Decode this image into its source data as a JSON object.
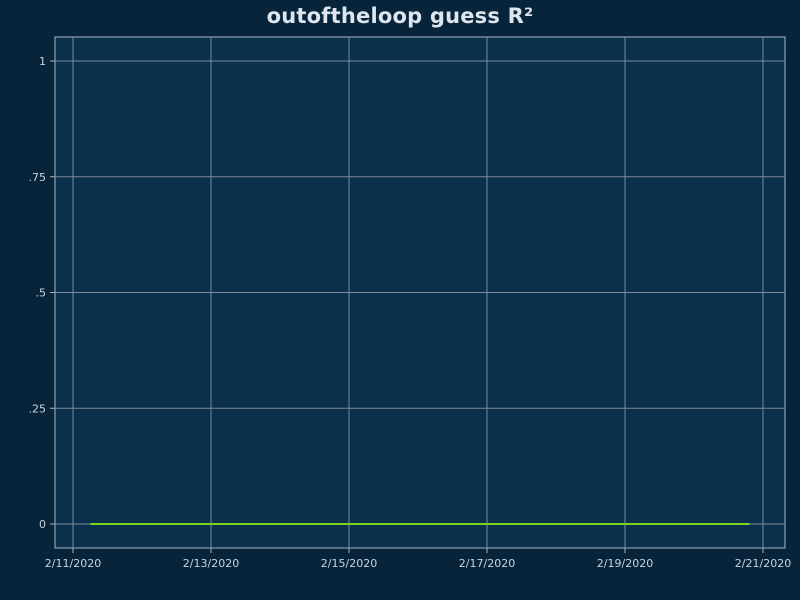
{
  "chart_data": {
    "type": "line",
    "title": "outoftheloop guess R²",
    "xlabel": "",
    "ylabel": "",
    "x_axis_type": "date",
    "x_ticks": [
      "2/11/2020",
      "2/13/2020",
      "2/15/2020",
      "2/17/2020",
      "2/19/2020",
      "2/21/2020"
    ],
    "y_ticks": [
      "0",
      ".25",
      ".5",
      ".75",
      "1"
    ],
    "ylim": [
      0,
      1
    ],
    "xlim": [
      "2020-02-11",
      "2020-02-21"
    ],
    "grid": true,
    "legend": "none",
    "series": [
      {
        "color": "#7ed321",
        "x": [
          "2020-02-11",
          "2020-02-12",
          "2020-02-13",
          "2020-02-14",
          "2020-02-15",
          "2020-02-16",
          "2020-02-17",
          "2020-02-18",
          "2020-02-19",
          "2020-02-20",
          "2020-02-21"
        ],
        "values": [
          0,
          0,
          0,
          0,
          0,
          0,
          0,
          0,
          0,
          0,
          0
        ]
      }
    ]
  },
  "colors": {
    "page_background": "#08243a",
    "plot_background": "#0b304b",
    "grid": "#7a8896",
    "text": "#dde6ee",
    "series": "#7ed321"
  }
}
